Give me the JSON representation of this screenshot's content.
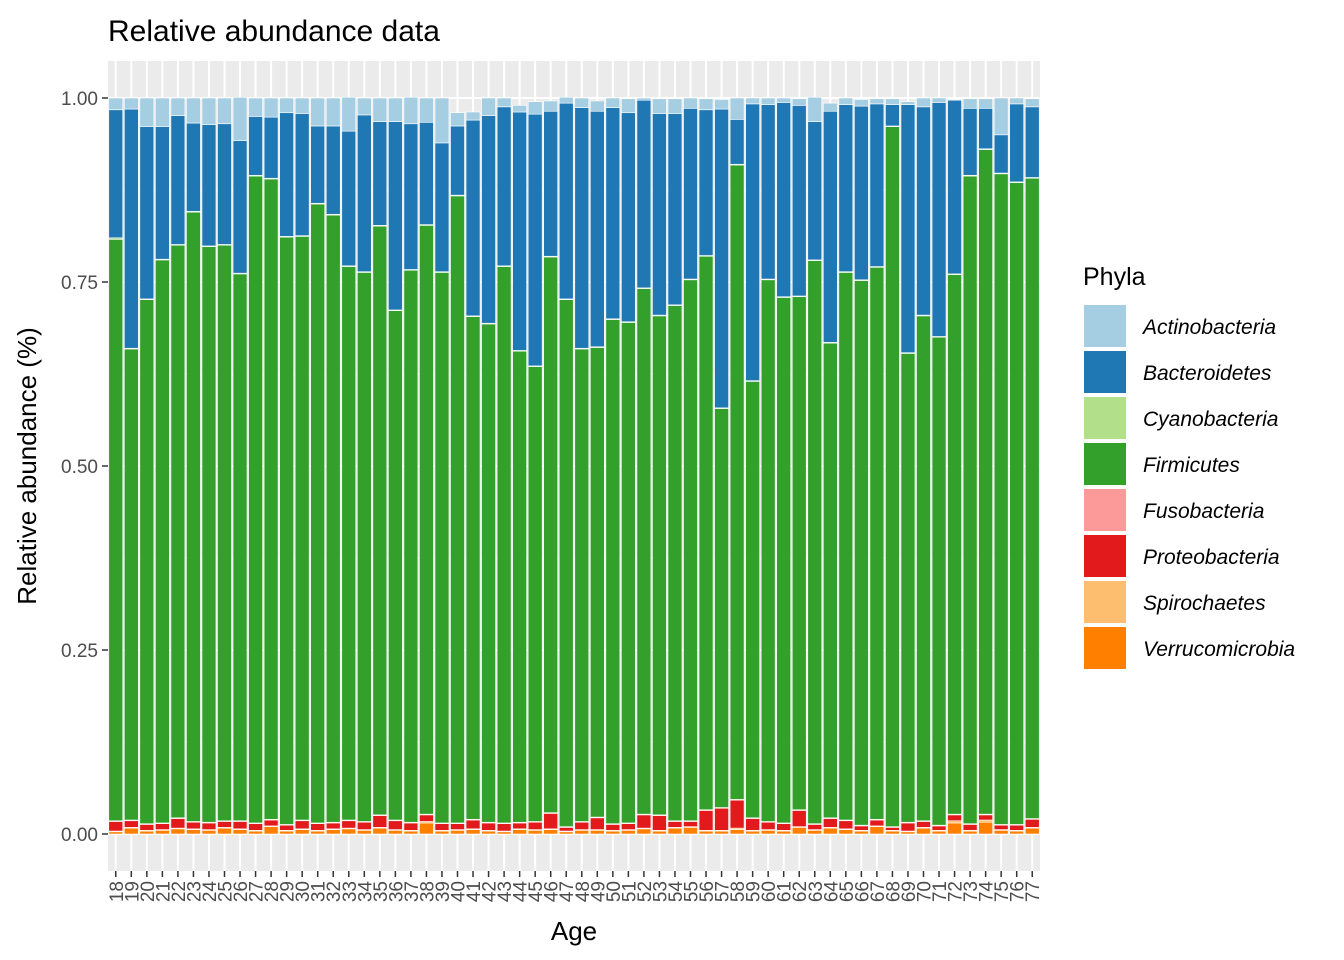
{
  "chart_data": {
    "type": "bar",
    "stacked": true,
    "title": "Relative abundance data",
    "xlabel": "Age",
    "ylabel": "Relative abundance (%)",
    "ylim": [
      0,
      1.05
    ],
    "y_ticks": [
      "0.00",
      "0.25",
      "0.50",
      "0.75",
      "1.00"
    ],
    "grid": true,
    "legend_title": "Phyla",
    "legend_position": "right",
    "categories": [
      "18",
      "19",
      "20",
      "21",
      "22",
      "23",
      "24",
      "25",
      "26",
      "27",
      "28",
      "29",
      "30",
      "31",
      "32",
      "33",
      "34",
      "35",
      "36",
      "37",
      "38",
      "39",
      "40",
      "41",
      "42",
      "43",
      "44",
      "45",
      "46",
      "47",
      "48",
      "49",
      "50",
      "51",
      "52",
      "53",
      "54",
      "55",
      "56",
      "57",
      "58",
      "59",
      "60",
      "61",
      "62",
      "63",
      "64",
      "65",
      "66",
      "67",
      "68",
      "69",
      "70",
      "71",
      "72",
      "73",
      "74",
      "75",
      "76",
      "77"
    ],
    "series": [
      {
        "name": "Verrucomicrobia",
        "color": "#FF7F00",
        "values": [
          0.003,
          0.008,
          0.004,
          0.005,
          0.007,
          0.006,
          0.005,
          0.008,
          0.006,
          0.004,
          0.01,
          0.004,
          0.006,
          0.004,
          0.006,
          0.007,
          0.005,
          0.008,
          0.005,
          0.004,
          0.015,
          0.004,
          0.005,
          0.006,
          0.004,
          0.003,
          0.006,
          0.005,
          0.006,
          0.003,
          0.005,
          0.005,
          0.004,
          0.005,
          0.007,
          0.004,
          0.008,
          0.009,
          0.004,
          0.004,
          0.006,
          0.004,
          0.005,
          0.004,
          0.009,
          0.005,
          0.008,
          0.006,
          0.004,
          0.01,
          0.004,
          0.003,
          0.008,
          0.004,
          0.015,
          0.004,
          0.016,
          0.005,
          0.004,
          0.008
        ]
      },
      {
        "name": "Spirochaetes",
        "color": "#FDBF6F",
        "values": [
          0.001,
          0.001,
          0.001,
          0.001,
          0.001,
          0.001,
          0.001,
          0.001,
          0.001,
          0.001,
          0.001,
          0.001,
          0.001,
          0.001,
          0.001,
          0.001,
          0.001,
          0.001,
          0.001,
          0.001,
          0.002,
          0.001,
          0.001,
          0.001,
          0.001,
          0.001,
          0.001,
          0.001,
          0.001,
          0.001,
          0.001,
          0.001,
          0.001,
          0.001,
          0.001,
          0.001,
          0.001,
          0.001,
          0.001,
          0.001,
          0.002,
          0.001,
          0.001,
          0.001,
          0.001,
          0.001,
          0.001,
          0.001,
          0.001,
          0.001,
          0.001,
          0.001,
          0.001,
          0.001,
          0.003,
          0.001,
          0.003,
          0.001,
          0.001,
          0.001
        ]
      },
      {
        "name": "Proteobacteria",
        "color": "#E31A1C",
        "values": [
          0.013,
          0.009,
          0.008,
          0.008,
          0.013,
          0.009,
          0.009,
          0.008,
          0.01,
          0.009,
          0.008,
          0.007,
          0.011,
          0.009,
          0.008,
          0.01,
          0.01,
          0.016,
          0.012,
          0.01,
          0.009,
          0.009,
          0.008,
          0.012,
          0.01,
          0.01,
          0.008,
          0.01,
          0.021,
          0.005,
          0.01,
          0.016,
          0.008,
          0.008,
          0.018,
          0.02,
          0.008,
          0.007,
          0.027,
          0.03,
          0.038,
          0.016,
          0.01,
          0.009,
          0.022,
          0.007,
          0.012,
          0.011,
          0.006,
          0.008,
          0.004,
          0.011,
          0.008,
          0.006,
          0.008,
          0.008,
          0.007,
          0.006,
          0.007,
          0.011
        ]
      },
      {
        "name": "Fusobacteria",
        "color": "#FB9A99",
        "values": [
          0.001,
          0.001,
          0.001,
          0.001,
          0.001,
          0.001,
          0.001,
          0.001,
          0.001,
          0.001,
          0.001,
          0.001,
          0.001,
          0.001,
          0.001,
          0.001,
          0.001,
          0.001,
          0.001,
          0.001,
          0.001,
          0.001,
          0.001,
          0.001,
          0.001,
          0.001,
          0.001,
          0.001,
          0.001,
          0.001,
          0.001,
          0.001,
          0.001,
          0.001,
          0.001,
          0.001,
          0.001,
          0.001,
          0.001,
          0.001,
          0.001,
          0.001,
          0.001,
          0.001,
          0.001,
          0.001,
          0.001,
          0.001,
          0.001,
          0.001,
          0.001,
          0.001,
          0.001,
          0.001,
          0.001,
          0.001,
          0.001,
          0.001,
          0.001,
          0.001
        ]
      },
      {
        "name": "Firmicutes",
        "color": "#33A02C",
        "values": [
          0.79,
          0.64,
          0.712,
          0.765,
          0.778,
          0.828,
          0.782,
          0.782,
          0.743,
          0.879,
          0.87,
          0.798,
          0.793,
          0.841,
          0.825,
          0.752,
          0.746,
          0.8,
          0.692,
          0.75,
          0.8,
          0.748,
          0.852,
          0.683,
          0.677,
          0.756,
          0.64,
          0.618,
          0.755,
          0.716,
          0.642,
          0.638,
          0.685,
          0.68,
          0.714,
          0.678,
          0.7,
          0.735,
          0.752,
          0.542,
          0.862,
          0.593,
          0.736,
          0.714,
          0.697,
          0.765,
          0.645,
          0.744,
          0.74,
          0.75,
          0.951,
          0.637,
          0.686,
          0.663,
          0.733,
          0.88,
          0.903,
          0.884,
          0.872,
          0.87
        ]
      },
      {
        "name": "Cyanobacteria",
        "color": "#B2DF8A",
        "values": [
          0.002,
          0.001,
          0.001,
          0.001,
          0.001,
          0.001,
          0.001,
          0.001,
          0.001,
          0.001,
          0.001,
          0.001,
          0.001,
          0.001,
          0.001,
          0.001,
          0.001,
          0.001,
          0.001,
          0.001,
          0.001,
          0.001,
          0.001,
          0.001,
          0.001,
          0.001,
          0.001,
          0.001,
          0.001,
          0.001,
          0.001,
          0.001,
          0.001,
          0.001,
          0.001,
          0.001,
          0.001,
          0.001,
          0.001,
          0.001,
          0.001,
          0.001,
          0.001,
          0.001,
          0.001,
          0.001,
          0.001,
          0.001,
          0.001,
          0.001,
          0.001,
          0.001,
          0.001,
          0.001,
          0.001,
          0.001,
          0.001,
          0.001,
          0.001,
          0.001
        ]
      },
      {
        "name": "Bacteroidetes",
        "color": "#1F78B4",
        "values": [
          0.174,
          0.325,
          0.234,
          0.18,
          0.175,
          0.12,
          0.165,
          0.164,
          0.18,
          0.08,
          0.083,
          0.168,
          0.166,
          0.105,
          0.12,
          0.183,
          0.213,
          0.141,
          0.256,
          0.198,
          0.139,
          0.175,
          0.094,
          0.266,
          0.282,
          0.216,
          0.324,
          0.342,
          0.197,
          0.266,
          0.327,
          0.32,
          0.287,
          0.284,
          0.255,
          0.274,
          0.26,
          0.232,
          0.198,
          0.406,
          0.061,
          0.376,
          0.237,
          0.264,
          0.259,
          0.188,
          0.314,
          0.227,
          0.236,
          0.221,
          0.029,
          0.337,
          0.283,
          0.318,
          0.236,
          0.091,
          0.055,
          0.052,
          0.106,
          0.096
        ]
      },
      {
        "name": "Actinobacteria",
        "color": "#A6CEE3",
        "values": [
          0.016,
          0.015,
          0.039,
          0.039,
          0.024,
          0.034,
          0.036,
          0.035,
          0.059,
          0.025,
          0.026,
          0.02,
          0.021,
          0.038,
          0.038,
          0.046,
          0.023,
          0.032,
          0.032,
          0.036,
          0.033,
          0.061,
          0.018,
          0.011,
          0.024,
          0.012,
          0.009,
          0.017,
          0.014,
          0.008,
          0.013,
          0.014,
          0.013,
          0.019,
          0.003,
          0.02,
          0.02,
          0.014,
          0.015,
          0.013,
          0.029,
          0.008,
          0.009,
          0.006,
          0.009,
          0.033,
          0.011,
          0.009,
          0.009,
          0.007,
          0.008,
          0.004,
          0.012,
          0.006,
          0.001,
          0.013,
          0.013,
          0.05,
          0.008,
          0.011
        ]
      }
    ]
  }
}
